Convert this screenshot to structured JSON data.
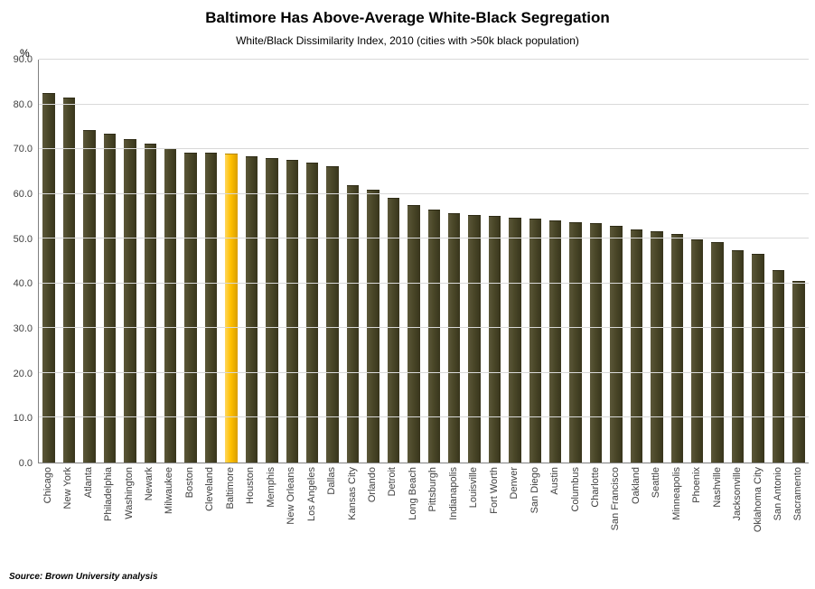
{
  "chart_data": {
    "type": "bar",
    "title": "Baltimore Has Above-Average White-Black Segregation",
    "subtitle": "White/Black Dissimilarity Index, 2010 (cities with >50k black population)",
    "ylabel": "%",
    "xlabel": "",
    "source": "Source: Brown University analysis",
    "ylim": [
      0,
      90
    ],
    "ytick_step": 10,
    "grid": true,
    "highlight_city": "Baltimore",
    "colors": {
      "bar": "#4A4728",
      "highlight": "#FFC000",
      "gridline": "#D9D9D9",
      "axis": "#808080"
    },
    "categories": [
      "Chicago",
      "New York",
      "Atlanta",
      "Philadelphia",
      "Washington",
      "Newark",
      "Milwaukee",
      "Boston",
      "Cleveland",
      "Baltimore",
      "Houston",
      "Memphis",
      "New Orleans",
      "Los Angeles",
      "Dallas",
      "Kansas City",
      "Orlando",
      "Detroit",
      "Long Beach",
      "Pittsburgh",
      "Indianapolis",
      "Louisville",
      "Fort Worth",
      "Denver",
      "San Diego",
      "Austin",
      "Columbus",
      "Charlotte",
      "San Francisco",
      "Oakland",
      "Seattle",
      "Minneapolis",
      "Phoenix",
      "Nashville",
      "Jacksonville",
      "Oklahoma City",
      "San Antonio",
      "Sacramento"
    ],
    "values": [
      82.5,
      81.5,
      74.2,
      73.5,
      72.2,
      71.2,
      70.2,
      69.3,
      69.2,
      69.1,
      68.4,
      68.0,
      67.6,
      67.0,
      66.2,
      62.0,
      61.0,
      59.2,
      57.5,
      56.6,
      55.6,
      55.3,
      55.0,
      54.6,
      54.5,
      54.1,
      53.6,
      53.4,
      52.9,
      52.0,
      51.6,
      51.0,
      49.8,
      49.2,
      47.5,
      46.7,
      42.9,
      40.5
    ]
  }
}
